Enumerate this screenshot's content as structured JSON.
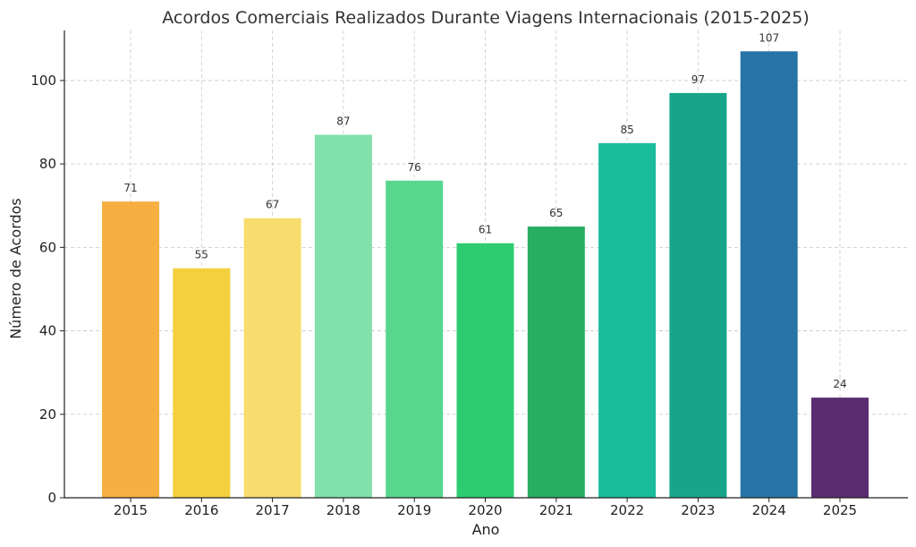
{
  "chart_data": {
    "type": "bar",
    "title": "Acordos Comerciais Realizados Durante Viagens Internacionais (2015-2025)",
    "xlabel": "Ano",
    "ylabel": "Número de Acordos",
    "categories": [
      "2015",
      "2016",
      "2017",
      "2018",
      "2019",
      "2020",
      "2021",
      "2022",
      "2023",
      "2024",
      "2025"
    ],
    "values": [
      71,
      55,
      67,
      87,
      76,
      61,
      65,
      85,
      97,
      107,
      24
    ],
    "colors": [
      "#f5b041",
      "#f4d03f",
      "#f7dc6f",
      "#82e0aa",
      "#58d68d",
      "#2ecc71",
      "#27ae60",
      "#1abc9c",
      "#17a589",
      "#2874a6",
      "#5b2c6f"
    ],
    "yticks": [
      0,
      20,
      40,
      60,
      80,
      100
    ],
    "ylim": [
      0,
      112
    ],
    "grid": true,
    "data_labels": true
  }
}
